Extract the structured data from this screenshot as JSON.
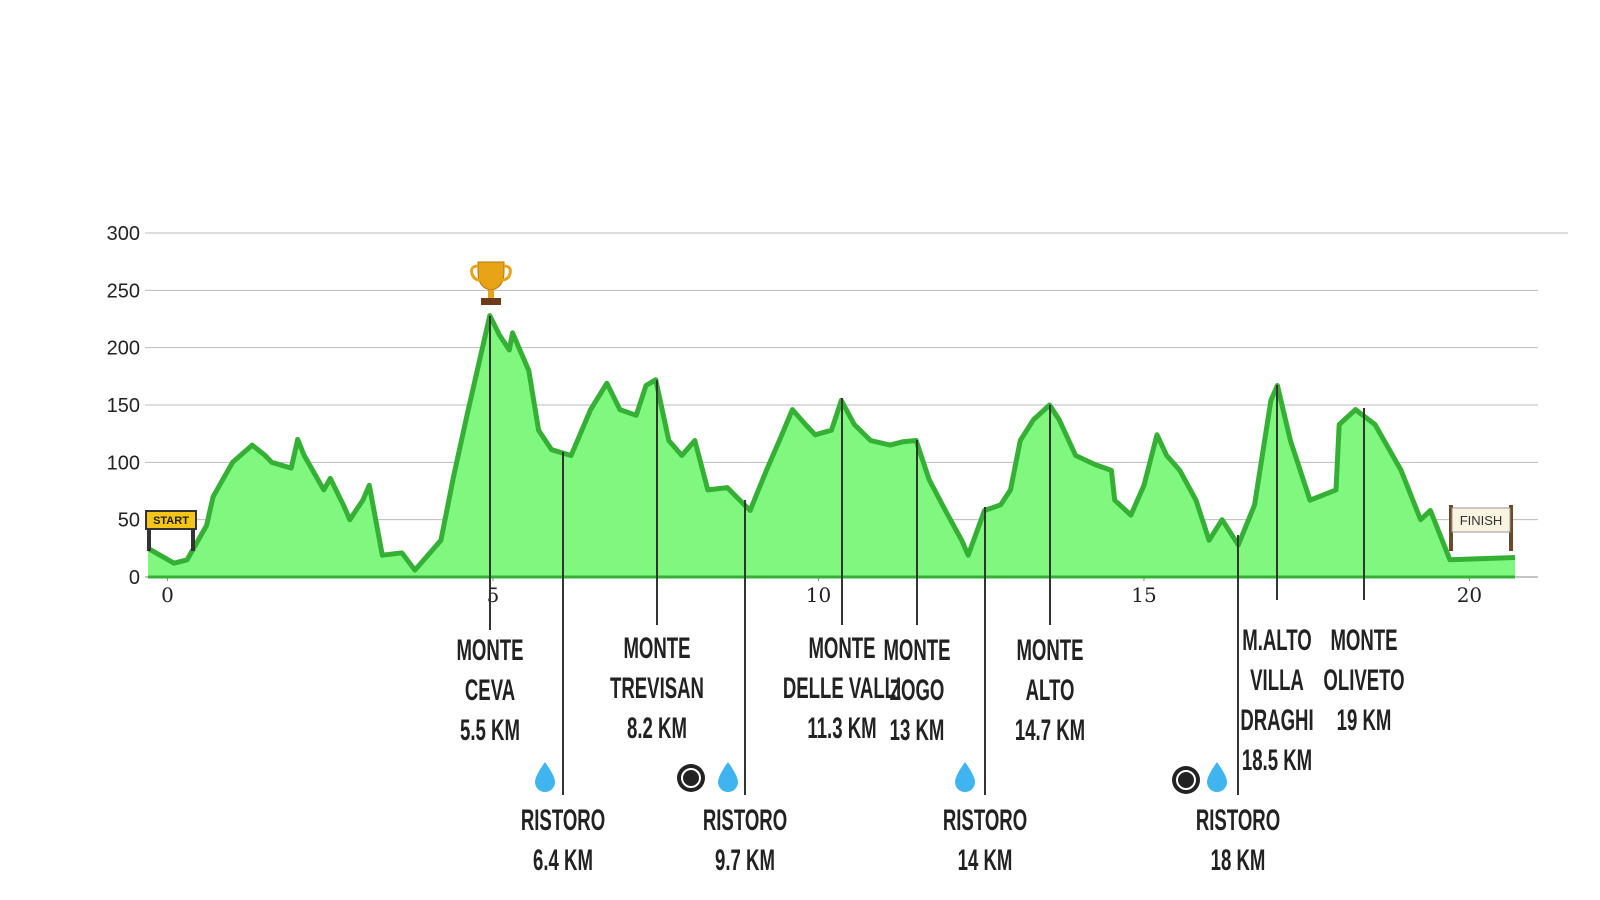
{
  "chart_data": {
    "type": "area",
    "color": "#35b035",
    "fill": "#80f880",
    "xlim": [
      -0.3,
      20.7
    ],
    "xticks": [
      0,
      5,
      10,
      15,
      20
    ],
    "ylim": [
      0,
      300
    ],
    "yticks": [
      0,
      50,
      100,
      150,
      200,
      250,
      300
    ],
    "grid": true,
    "x": [
      -0.3,
      0.1,
      0.3,
      0.6,
      0.7,
      1.0,
      1.3,
      1.5,
      1.6,
      1.9,
      2.0,
      2.1,
      2.4,
      2.5,
      2.7,
      2.8,
      3.0,
      3.1,
      3.3,
      3.6,
      3.8,
      4.2,
      4.4,
      4.6,
      4.95,
      5.1,
      5.25,
      5.3,
      5.55,
      5.7,
      5.9,
      6.2,
      6.5,
      6.75,
      6.95,
      7.2,
      7.35,
      7.5,
      7.7,
      7.9,
      8.1,
      8.3,
      8.6,
      8.95,
      9.2,
      9.4,
      9.6,
      9.8,
      9.95,
      10.2,
      10.35,
      10.55,
      10.8,
      11.1,
      11.3,
      11.5,
      11.7,
      11.95,
      12.2,
      12.3,
      12.55,
      12.8,
      12.95,
      13.1,
      13.3,
      13.55,
      13.7,
      13.95,
      14.25,
      14.5,
      14.55,
      14.8,
      15.0,
      15.2,
      15.35,
      15.55,
      15.8,
      16.0,
      16.2,
      16.45,
      16.7,
      16.95,
      17.05,
      17.25,
      17.55,
      17.95,
      18.0,
      18.25,
      18.55,
      18.95,
      19.25,
      19.4,
      19.7,
      20.7
    ],
    "values": [
      25,
      12,
      15,
      45,
      70,
      100,
      115,
      106,
      100,
      95,
      120,
      106,
      76,
      86,
      63,
      50,
      67,
      80,
      19,
      21,
      6,
      32,
      89,
      141,
      228,
      211,
      198,
      213,
      180,
      128,
      111,
      106,
      146,
      169,
      146,
      141,
      167,
      172,
      119,
      106,
      119,
      76,
      78,
      58,
      93,
      119,
      146,
      133,
      124,
      128,
      154,
      133,
      119,
      115,
      118,
      119,
      85,
      58,
      32,
      19,
      58,
      63,
      76,
      119,
      137,
      150,
      137,
      106,
      98,
      93,
      67,
      54,
      80,
      124,
      106,
      93,
      67,
      32,
      50,
      28,
      63,
      154,
      167,
      119,
      67,
      76,
      133,
      146,
      133,
      93,
      50,
      58,
      15,
      17
    ],
    "start_label": "START",
    "finish_label": "FINISH",
    "annotations": [
      {
        "lines": [
          "MONTE",
          "CEVA",
          "5.5 KM"
        ]
      },
      {
        "lines": [
          "RISTORO",
          "6.4 KM"
        ]
      },
      {
        "lines": [
          "MONTE",
          "TREVISAN",
          "8.2 KM"
        ]
      },
      {
        "lines": [
          "RISTORO",
          "9.7 KM"
        ]
      },
      {
        "lines": [
          "MONTE",
          "DELLE VALLI",
          "11.3 KM"
        ]
      },
      {
        "lines": [
          "MONTE",
          "ZOGO",
          "13 KM"
        ]
      },
      {
        "lines": [
          "RISTORO",
          "14 KM"
        ]
      },
      {
        "lines": [
          "MONTE",
          "ALTO",
          "14.7 KM"
        ]
      },
      {
        "lines": [
          "RISTORO",
          "18 KM"
        ]
      },
      {
        "lines": [
          "M.ALTO",
          "VILLA",
          "DRAGHI",
          "18.5 KM"
        ]
      },
      {
        "lines": [
          "MONTE",
          "OLIVETO",
          "19 KM"
        ]
      }
    ]
  }
}
